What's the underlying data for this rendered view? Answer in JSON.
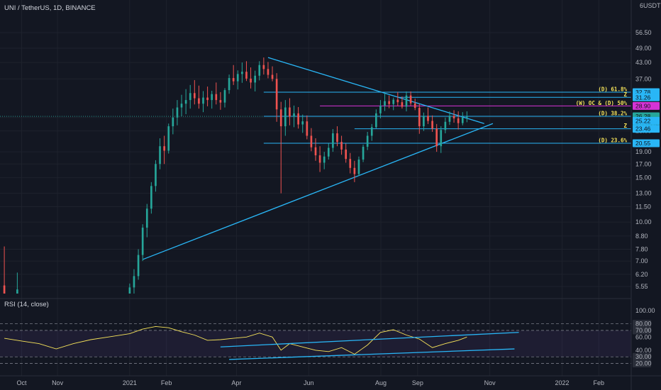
{
  "chart_data": {
    "type": "candlestick",
    "title": "UNI / TetherUS, 1D, BINANCE",
    "currency": "USDT",
    "y_scale": "log",
    "ylim": [
      5.2,
      66
    ],
    "x_months": [
      {
        "label": "Oct",
        "x": 2020.75
      },
      {
        "label": "Nov",
        "x": 2020.833
      },
      {
        "label": "2021",
        "x": 2021.0
      },
      {
        "label": "Feb",
        "x": 2021.085
      },
      {
        "label": "Apr",
        "x": 2021.247
      },
      {
        "label": "Jun",
        "x": 2021.414
      },
      {
        "label": "Aug",
        "x": 2021.581
      },
      {
        "label": "Sep",
        "x": 2021.666
      },
      {
        "label": "Nov",
        "x": 2021.833
      },
      {
        "label": "2022",
        "x": 2022.0
      },
      {
        "label": "Feb",
        "x": 2022.085
      }
    ],
    "price_ticks": [
      5.55,
      6.2,
      7.0,
      7.8,
      8.8,
      10.0,
      11.5,
      13.0,
      15.0,
      17.0,
      19.0,
      23.0,
      26.0,
      37.0,
      43.0,
      49.0,
      56.5
    ],
    "top_tick": "6",
    "price_labels": [
      {
        "value": 32.78,
        "text": "32.78",
        "bg": "#29b6f6"
      },
      {
        "value": 31.26,
        "text": "31.26",
        "bg": "#29b6f6"
      },
      {
        "value": 28.9,
        "text": "28.90",
        "bg": "#d633d6"
      },
      {
        "value": 26.28,
        "text": "26.28",
        "bg": "#26a69a",
        "countdown": "17:46:42"
      },
      {
        "value": 25.22,
        "text": "25.22",
        "bg": "#29b6f6"
      },
      {
        "value": 23.46,
        "text": "23.46",
        "bg": "#29b6f6"
      },
      {
        "value": 20.55,
        "text": "20.55",
        "bg": "#29b6f6"
      }
    ],
    "levels": [
      {
        "value": 32.78,
        "color": "#29b6f6",
        "label": "(D) 61.8%",
        "x_start": 2021.31
      },
      {
        "value": 31.26,
        "color": "#29b6f6",
        "label": "Z",
        "x_start": 2021.62
      },
      {
        "value": 28.9,
        "color": "#d633d6",
        "label": "(W) OC & (D) 50%",
        "x_start": 2021.44
      },
      {
        "value": 26.28,
        "color": "#29b6f6",
        "label": "(D) 38.2%",
        "x_start": 2021.31
      },
      {
        "value": 23.46,
        "color": "#29b6f6",
        "label": "Z",
        "x_start": 2021.52
      },
      {
        "value": 20.55,
        "color": "#29b6f6",
        "label": "(D) 23.6%",
        "x_start": 2021.31
      }
    ],
    "trendlines": [
      {
        "from": [
          2021.03,
          7.1
        ],
        "to": [
          2021.84,
          24.6
        ]
      },
      {
        "from": [
          2021.32,
          45.0
        ],
        "to": [
          2021.82,
          24.6
        ]
      }
    ],
    "candles_ohlc": [
      [
        2020.71,
        5.6,
        8.0,
        4.0,
        5.0
      ],
      [
        2020.74,
        5.0,
        6.3,
        4.4,
        5.4
      ],
      [
        2021.0,
        4.6,
        5.7,
        4.3,
        5.5
      ],
      [
        2021.01,
        5.5,
        6.5,
        5.1,
        6.1
      ],
      [
        2021.02,
        6.1,
        7.8,
        5.9,
        7.4
      ],
      [
        2021.03,
        7.4,
        9.8,
        7.0,
        9.5
      ],
      [
        2021.04,
        9.5,
        11.8,
        8.7,
        11.3
      ],
      [
        2021.05,
        11.3,
        14.4,
        10.8,
        13.9
      ],
      [
        2021.06,
        13.9,
        17.6,
        13.2,
        17.0
      ],
      [
        2021.07,
        17.0,
        21.5,
        16.2,
        20.0
      ],
      [
        2021.08,
        20.0,
        22.0,
        17.0,
        19.2
      ],
      [
        2021.09,
        19.2,
        24.6,
        18.7,
        24.0
      ],
      [
        2021.1,
        24.0,
        28.2,
        22.3,
        26.0
      ],
      [
        2021.11,
        26.0,
        30.5,
        24.2,
        28.5
      ],
      [
        2021.12,
        28.5,
        32.0,
        26.3,
        29.5
      ],
      [
        2021.13,
        29.5,
        33.7,
        26.8,
        30.5
      ],
      [
        2021.14,
        30.5,
        35.0,
        28.2,
        32.5
      ],
      [
        2021.15,
        32.5,
        36.6,
        29.3,
        31.0
      ],
      [
        2021.16,
        31.0,
        34.8,
        28.2,
        29.5
      ],
      [
        2021.17,
        29.5,
        33.1,
        27.3,
        31.2
      ],
      [
        2021.18,
        31.2,
        34.5,
        28.8,
        30.5
      ],
      [
        2021.19,
        30.5,
        33.2,
        28.2,
        32.2
      ],
      [
        2021.2,
        32.2,
        35.8,
        29.3,
        30.5
      ],
      [
        2021.21,
        30.5,
        32.8,
        27.9,
        29.8
      ],
      [
        2021.22,
        29.8,
        34.0,
        28.5,
        33.4
      ],
      [
        2021.23,
        33.4,
        38.5,
        32.3,
        37.3
      ],
      [
        2021.24,
        37.3,
        42.0,
        35.0,
        36.2
      ],
      [
        2021.25,
        36.2,
        40.0,
        33.6,
        38.7
      ],
      [
        2021.26,
        38.7,
        43.0,
        35.7,
        39.5
      ],
      [
        2021.27,
        39.5,
        43.5,
        36.3,
        37.1
      ],
      [
        2021.28,
        37.1,
        41.1,
        33.9,
        35.8
      ],
      [
        2021.29,
        35.8,
        39.9,
        33.0,
        38.1
      ],
      [
        2021.3,
        38.1,
        43.5,
        36.5,
        42.0
      ],
      [
        2021.31,
        42.0,
        45.0,
        38.5,
        40.5
      ],
      [
        2021.32,
        40.5,
        43.2,
        37.2,
        38.4
      ],
      [
        2021.33,
        38.4,
        41.5,
        36.2,
        37.0
      ],
      [
        2021.34,
        37.0,
        39.0,
        25.0,
        28.0
      ],
      [
        2021.35,
        28.0,
        30.0,
        13.0,
        24.0
      ],
      [
        2021.36,
        24.0,
        30.5,
        22.0,
        28.5
      ],
      [
        2021.37,
        28.5,
        31.0,
        24.2,
        26.2
      ],
      [
        2021.38,
        26.2,
        29.0,
        23.8,
        27.0
      ],
      [
        2021.39,
        27.0,
        28.6,
        23.5,
        24.4
      ],
      [
        2021.4,
        24.4,
        26.7,
        22.6,
        25.1
      ],
      [
        2021.41,
        25.1,
        26.5,
        21.3,
        22.0
      ],
      [
        2021.42,
        22.0,
        23.6,
        19.1,
        19.8
      ],
      [
        2021.43,
        19.8,
        21.5,
        17.5,
        18.4
      ],
      [
        2021.44,
        18.4,
        20.0,
        15.8,
        17.2
      ],
      [
        2021.45,
        17.2,
        19.0,
        16.2,
        18.2
      ],
      [
        2021.46,
        18.2,
        20.5,
        17.7,
        19.7
      ],
      [
        2021.47,
        19.7,
        23.4,
        19.0,
        22.5
      ],
      [
        2021.48,
        22.5,
        24.0,
        20.0,
        20.8
      ],
      [
        2021.49,
        20.8,
        22.0,
        18.5,
        19.4
      ],
      [
        2021.5,
        19.4,
        20.5,
        17.2,
        17.8
      ],
      [
        2021.51,
        17.8,
        18.8,
        15.6,
        16.4
      ],
      [
        2021.52,
        16.4,
        17.5,
        14.4,
        15.5
      ],
      [
        2021.53,
        15.5,
        18.2,
        15.2,
        17.7
      ],
      [
        2021.54,
        17.7,
        20.3,
        17.3,
        19.9
      ],
      [
        2021.55,
        19.9,
        22.8,
        19.3,
        22.0
      ],
      [
        2021.56,
        22.0,
        24.5,
        21.0,
        23.8
      ],
      [
        2021.57,
        23.8,
        28.0,
        23.5,
        27.0
      ],
      [
        2021.58,
        27.0,
        30.5,
        25.8,
        29.0
      ],
      [
        2021.59,
        29.0,
        32.5,
        27.6,
        30.2
      ],
      [
        2021.6,
        30.2,
        31.8,
        28.3,
        29.4
      ],
      [
        2021.61,
        29.4,
        31.2,
        27.8,
        30.6
      ],
      [
        2021.62,
        30.6,
        32.8,
        28.8,
        29.9
      ],
      [
        2021.63,
        29.9,
        31.5,
        28.2,
        28.7
      ],
      [
        2021.64,
        28.7,
        33.0,
        27.5,
        31.8
      ],
      [
        2021.65,
        31.8,
        33.0,
        29.0,
        29.6
      ],
      [
        2021.66,
        29.6,
        30.9,
        27.8,
        28.4
      ],
      [
        2021.67,
        28.4,
        29.5,
        22.4,
        24.0
      ],
      [
        2021.68,
        24.0,
        27.2,
        23.0,
        26.4
      ],
      [
        2021.69,
        26.4,
        28.5,
        24.5,
        25.2
      ],
      [
        2021.7,
        25.2,
        26.5,
        22.8,
        23.5
      ],
      [
        2021.71,
        23.5,
        24.5,
        19.0,
        20.0
      ],
      [
        2021.72,
        20.0,
        24.0,
        18.8,
        23.2
      ],
      [
        2021.73,
        23.2,
        26.0,
        22.5,
        25.0
      ],
      [
        2021.74,
        25.0,
        27.5,
        24.3,
        26.4
      ],
      [
        2021.75,
        26.4,
        27.8,
        24.8,
        25.8
      ],
      [
        2021.76,
        25.8,
        27.5,
        23.3,
        24.7
      ],
      [
        2021.77,
        24.7,
        27.3,
        24.2,
        26.0
      ],
      [
        2021.78,
        26.0,
        27.5,
        24.9,
        26.28
      ]
    ],
    "rsi": {
      "label": "RSI (14, close)",
      "ylim": [
        12,
        100
      ],
      "ticks": [
        20,
        30,
        40,
        60,
        70,
        80,
        100
      ],
      "badge_ticks": [
        80,
        70,
        30,
        20
      ],
      "dashed_levels": [
        80,
        70,
        30,
        20
      ],
      "band": [
        30,
        70
      ],
      "series": [
        [
          2020.71,
          58
        ],
        [
          2020.75,
          54
        ],
        [
          2020.79,
          50
        ],
        [
          2020.83,
          42
        ],
        [
          2020.87,
          50
        ],
        [
          2020.91,
          56
        ],
        [
          2020.95,
          60
        ],
        [
          2021.0,
          65
        ],
        [
          2021.03,
          72
        ],
        [
          2021.06,
          76
        ],
        [
          2021.09,
          74
        ],
        [
          2021.12,
          68
        ],
        [
          2021.15,
          63
        ],
        [
          2021.18,
          55
        ],
        [
          2021.21,
          56
        ],
        [
          2021.24,
          58
        ],
        [
          2021.27,
          60
        ],
        [
          2021.3,
          66
        ],
        [
          2021.33,
          60
        ],
        [
          2021.35,
          40
        ],
        [
          2021.37,
          50
        ],
        [
          2021.4,
          45
        ],
        [
          2021.43,
          40
        ],
        [
          2021.46,
          38
        ],
        [
          2021.49,
          44
        ],
        [
          2021.52,
          34
        ],
        [
          2021.55,
          48
        ],
        [
          2021.58,
          67
        ],
        [
          2021.61,
          71
        ],
        [
          2021.64,
          63
        ],
        [
          2021.67,
          57
        ],
        [
          2021.7,
          44
        ],
        [
          2021.73,
          50
        ],
        [
          2021.76,
          55
        ],
        [
          2021.78,
          60
        ]
      ],
      "lines": [
        {
          "from": [
            2021.21,
            45
          ],
          "to": [
            2021.9,
            67
          ]
        },
        {
          "from": [
            2021.23,
            26
          ],
          "to": [
            2021.89,
            42
          ]
        }
      ]
    }
  }
}
